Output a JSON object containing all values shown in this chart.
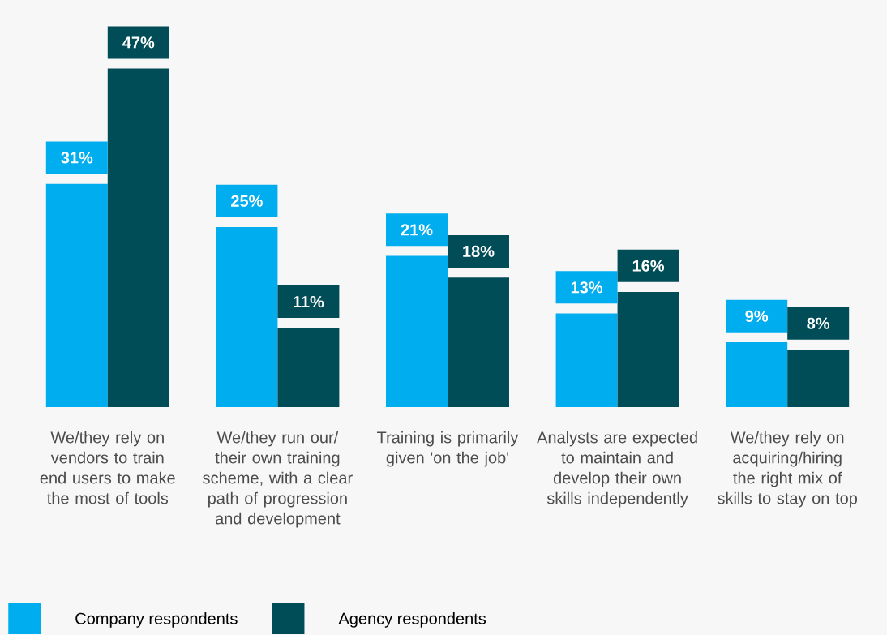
{
  "chart_data": {
    "type": "bar",
    "categories": [
      "We/they rely on vendors to train end users to make the most of tools",
      "We/they run our/ their own training scheme, with a clear path of progression and development",
      "Training is primarily given 'on the job'",
      "Analysts are expected to maintain and develop their own skills independently",
      "We/they rely on acquiring/hiring the right mix of skills to stay on top"
    ],
    "series": [
      {
        "name": "Company respondents",
        "color": "#00adef",
        "values": [
          31,
          25,
          21,
          13,
          9
        ],
        "value_labels": [
          "31%",
          "25%",
          "21%",
          "13%",
          "9%"
        ]
      },
      {
        "name": "Agency respondents",
        "color": "#004d57",
        "values": [
          47,
          11,
          18,
          16,
          8
        ],
        "value_labels": [
          "47%",
          "11%",
          "18%",
          "16%",
          "8%"
        ]
      }
    ],
    "legend": "bottom left"
  }
}
